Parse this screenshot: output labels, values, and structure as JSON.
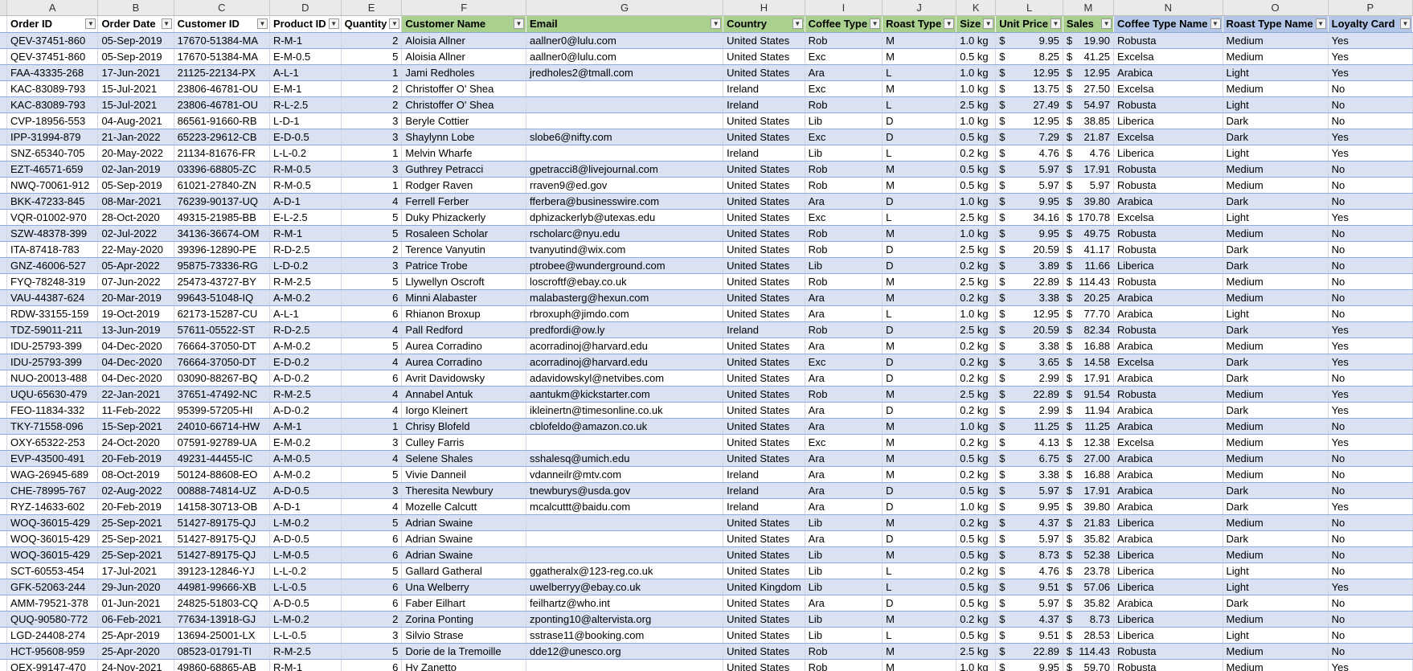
{
  "column_letters": [
    "A",
    "B",
    "C",
    "D",
    "E",
    "F",
    "G",
    "H",
    "I",
    "J",
    "K",
    "L",
    "M",
    "N",
    "O",
    "P"
  ],
  "headers": [
    "Order ID",
    "Order Date",
    "Customer ID",
    "Product ID",
    "Quantity",
    "Customer Name",
    "Email",
    "Country",
    "Coffee Type",
    "Roast Type",
    "Size",
    "Unit Price",
    "Sales",
    "Coffee Type Name",
    "Roast Type Name",
    "Loyalty Card"
  ],
  "currency_symbol": "$",
  "colors": {
    "header_green": "#a9d08e",
    "header_blue": "#b4c6e7",
    "band": "#d9e1f2",
    "border": "#8ea9db"
  },
  "filter_icon": "filter-dropdown-icon",
  "rows": [
    [
      "QEV-37451-860",
      "05-Sep-2019",
      "17670-51384-MA",
      "R-M-1",
      "2",
      "Aloisia Allner",
      "aallner0@lulu.com",
      "United States",
      "Rob",
      "M",
      "1.0 kg",
      "9.95",
      "19.90",
      "Robusta",
      "Medium",
      "Yes"
    ],
    [
      "QEV-37451-860",
      "05-Sep-2019",
      "17670-51384-MA",
      "E-M-0.5",
      "5",
      "Aloisia Allner",
      "aallner0@lulu.com",
      "United States",
      "Exc",
      "M",
      "0.5 kg",
      "8.25",
      "41.25",
      "Excelsa",
      "Medium",
      "Yes"
    ],
    [
      "FAA-43335-268",
      "17-Jun-2021",
      "21125-22134-PX",
      "A-L-1",
      "1",
      "Jami Redholes",
      "jredholes2@tmall.com",
      "United States",
      "Ara",
      "L",
      "1.0 kg",
      "12.95",
      "12.95",
      "Arabica",
      "Light",
      "Yes"
    ],
    [
      "KAC-83089-793",
      "15-Jul-2021",
      "23806-46781-OU",
      "E-M-1",
      "2",
      "Christoffer O' Shea",
      "",
      "Ireland",
      "Exc",
      "M",
      "1.0 kg",
      "13.75",
      "27.50",
      "Excelsa",
      "Medium",
      "No"
    ],
    [
      "KAC-83089-793",
      "15-Jul-2021",
      "23806-46781-OU",
      "R-L-2.5",
      "2",
      "Christoffer O' Shea",
      "",
      "Ireland",
      "Rob",
      "L",
      "2.5 kg",
      "27.49",
      "54.97",
      "Robusta",
      "Light",
      "No"
    ],
    [
      "CVP-18956-553",
      "04-Aug-2021",
      "86561-91660-RB",
      "L-D-1",
      "3",
      "Beryle Cottier",
      "",
      "United States",
      "Lib",
      "D",
      "1.0 kg",
      "12.95",
      "38.85",
      "Liberica",
      "Dark",
      "No"
    ],
    [
      "IPP-31994-879",
      "21-Jan-2022",
      "65223-29612-CB",
      "E-D-0.5",
      "3",
      "Shaylynn Lobe",
      "slobe6@nifty.com",
      "United States",
      "Exc",
      "D",
      "0.5 kg",
      "7.29",
      "21.87",
      "Excelsa",
      "Dark",
      "Yes"
    ],
    [
      "SNZ-65340-705",
      "20-May-2022",
      "21134-81676-FR",
      "L-L-0.2",
      "1",
      "Melvin Wharfe",
      "",
      "Ireland",
      "Lib",
      "L",
      "0.2 kg",
      "4.76",
      "4.76",
      "Liberica",
      "Light",
      "Yes"
    ],
    [
      "EZT-46571-659",
      "02-Jan-2019",
      "03396-68805-ZC",
      "R-M-0.5",
      "3",
      "Guthrey Petracci",
      "gpetracci8@livejournal.com",
      "United States",
      "Rob",
      "M",
      "0.5 kg",
      "5.97",
      "17.91",
      "Robusta",
      "Medium",
      "No"
    ],
    [
      "NWQ-70061-912",
      "05-Sep-2019",
      "61021-27840-ZN",
      "R-M-0.5",
      "1",
      "Rodger Raven",
      "rraven9@ed.gov",
      "United States",
      "Rob",
      "M",
      "0.5 kg",
      "5.97",
      "5.97",
      "Robusta",
      "Medium",
      "No"
    ],
    [
      "BKK-47233-845",
      "08-Mar-2021",
      "76239-90137-UQ",
      "A-D-1",
      "4",
      "Ferrell Ferber",
      "fferbera@businesswire.com",
      "United States",
      "Ara",
      "D",
      "1.0 kg",
      "9.95",
      "39.80",
      "Arabica",
      "Dark",
      "No"
    ],
    [
      "VQR-01002-970",
      "28-Oct-2020",
      "49315-21985-BB",
      "E-L-2.5",
      "5",
      "Duky Phizackerly",
      "dphizackerlyb@utexas.edu",
      "United States",
      "Exc",
      "L",
      "2.5 kg",
      "34.16",
      "170.78",
      "Excelsa",
      "Light",
      "Yes"
    ],
    [
      "SZW-48378-399",
      "02-Jul-2022",
      "34136-36674-OM",
      "R-M-1",
      "5",
      "Rosaleen Scholar",
      "rscholarc@nyu.edu",
      "United States",
      "Rob",
      "M",
      "1.0 kg",
      "9.95",
      "49.75",
      "Robusta",
      "Medium",
      "No"
    ],
    [
      "ITA-87418-783",
      "22-May-2020",
      "39396-12890-PE",
      "R-D-2.5",
      "2",
      "Terence Vanyutin",
      "tvanyutind@wix.com",
      "United States",
      "Rob",
      "D",
      "2.5 kg",
      "20.59",
      "41.17",
      "Robusta",
      "Dark",
      "No"
    ],
    [
      "GNZ-46006-527",
      "05-Apr-2022",
      "95875-73336-RG",
      "L-D-0.2",
      "3",
      "Patrice Trobe",
      "ptrobee@wunderground.com",
      "United States",
      "Lib",
      "D",
      "0.2 kg",
      "3.89",
      "11.66",
      "Liberica",
      "Dark",
      "No"
    ],
    [
      "FYQ-78248-319",
      "07-Jun-2022",
      "25473-43727-BY",
      "R-M-2.5",
      "5",
      "Llywellyn Oscroft",
      "loscroftf@ebay.co.uk",
      "United States",
      "Rob",
      "M",
      "2.5 kg",
      "22.89",
      "114.43",
      "Robusta",
      "Medium",
      "No"
    ],
    [
      "VAU-44387-624",
      "20-Mar-2019",
      "99643-51048-IQ",
      "A-M-0.2",
      "6",
      "Minni Alabaster",
      "malabasterg@hexun.com",
      "United States",
      "Ara",
      "M",
      "0.2 kg",
      "3.38",
      "20.25",
      "Arabica",
      "Medium",
      "No"
    ],
    [
      "RDW-33155-159",
      "19-Oct-2019",
      "62173-15287-CU",
      "A-L-1",
      "6",
      "Rhianon Broxup",
      "rbroxuph@jimdo.com",
      "United States",
      "Ara",
      "L",
      "1.0 kg",
      "12.95",
      "77.70",
      "Arabica",
      "Light",
      "No"
    ],
    [
      "TDZ-59011-211",
      "13-Jun-2019",
      "57611-05522-ST",
      "R-D-2.5",
      "4",
      "Pall Redford",
      "predfordi@ow.ly",
      "Ireland",
      "Rob",
      "D",
      "2.5 kg",
      "20.59",
      "82.34",
      "Robusta",
      "Dark",
      "Yes"
    ],
    [
      "IDU-25793-399",
      "04-Dec-2020",
      "76664-37050-DT",
      "A-M-0.2",
      "5",
      "Aurea Corradino",
      "acorradinoj@harvard.edu",
      "United States",
      "Ara",
      "M",
      "0.2 kg",
      "3.38",
      "16.88",
      "Arabica",
      "Medium",
      "Yes"
    ],
    [
      "IDU-25793-399",
      "04-Dec-2020",
      "76664-37050-DT",
      "E-D-0.2",
      "4",
      "Aurea Corradino",
      "acorradinoj@harvard.edu",
      "United States",
      "Exc",
      "D",
      "0.2 kg",
      "3.65",
      "14.58",
      "Excelsa",
      "Dark",
      "Yes"
    ],
    [
      "NUO-20013-488",
      "04-Dec-2020",
      "03090-88267-BQ",
      "A-D-0.2",
      "6",
      "Avrit Davidowsky",
      "adavidowskyl@netvibes.com",
      "United States",
      "Ara",
      "D",
      "0.2 kg",
      "2.99",
      "17.91",
      "Arabica",
      "Dark",
      "No"
    ],
    [
      "UQU-65630-479",
      "22-Jan-2021",
      "37651-47492-NC",
      "R-M-2.5",
      "4",
      "Annabel Antuk",
      "aantukm@kickstarter.com",
      "United States",
      "Rob",
      "M",
      "2.5 kg",
      "22.89",
      "91.54",
      "Robusta",
      "Medium",
      "Yes"
    ],
    [
      "FEO-11834-332",
      "11-Feb-2022",
      "95399-57205-HI",
      "A-D-0.2",
      "4",
      "Iorgo Kleinert",
      "ikleinertn@timesonline.co.uk",
      "United States",
      "Ara",
      "D",
      "0.2 kg",
      "2.99",
      "11.94",
      "Arabica",
      "Dark",
      "Yes"
    ],
    [
      "TKY-71558-096",
      "15-Sep-2021",
      "24010-66714-HW",
      "A-M-1",
      "1",
      "Chrisy Blofeld",
      "cblofeldo@amazon.co.uk",
      "United States",
      "Ara",
      "M",
      "1.0 kg",
      "11.25",
      "11.25",
      "Arabica",
      "Medium",
      "No"
    ],
    [
      "OXY-65322-253",
      "24-Oct-2020",
      "07591-92789-UA",
      "E-M-0.2",
      "3",
      "Culley Farris",
      "",
      "United States",
      "Exc",
      "M",
      "0.2 kg",
      "4.13",
      "12.38",
      "Excelsa",
      "Medium",
      "Yes"
    ],
    [
      "EVP-43500-491",
      "20-Feb-2019",
      "49231-44455-IC",
      "A-M-0.5",
      "4",
      "Selene Shales",
      "sshalesq@umich.edu",
      "United States",
      "Ara",
      "M",
      "0.5 kg",
      "6.75",
      "27.00",
      "Arabica",
      "Medium",
      "No"
    ],
    [
      "WAG-26945-689",
      "08-Oct-2019",
      "50124-88608-EO",
      "A-M-0.2",
      "5",
      "Vivie Danneil",
      "vdanneilr@mtv.com",
      "Ireland",
      "Ara",
      "M",
      "0.2 kg",
      "3.38",
      "16.88",
      "Arabica",
      "Medium",
      "No"
    ],
    [
      "CHE-78995-767",
      "02-Aug-2022",
      "00888-74814-UZ",
      "A-D-0.5",
      "3",
      "Theresita Newbury",
      "tnewburys@usda.gov",
      "Ireland",
      "Ara",
      "D",
      "0.5 kg",
      "5.97",
      "17.91",
      "Arabica",
      "Dark",
      "No"
    ],
    [
      "RYZ-14633-602",
      "20-Feb-2019",
      "14158-30713-OB",
      "A-D-1",
      "4",
      "Mozelle Calcutt",
      "mcalcuttt@baidu.com",
      "Ireland",
      "Ara",
      "D",
      "1.0 kg",
      "9.95",
      "39.80",
      "Arabica",
      "Dark",
      "Yes"
    ],
    [
      "WOQ-36015-429",
      "25-Sep-2021",
      "51427-89175-QJ",
      "L-M-0.2",
      "5",
      "Adrian Swaine",
      "",
      "United States",
      "Lib",
      "M",
      "0.2 kg",
      "4.37",
      "21.83",
      "Liberica",
      "Medium",
      "No"
    ],
    [
      "WOQ-36015-429",
      "25-Sep-2021",
      "51427-89175-QJ",
      "A-D-0.5",
      "6",
      "Adrian Swaine",
      "",
      "United States",
      "Ara",
      "D",
      "0.5 kg",
      "5.97",
      "35.82",
      "Arabica",
      "Dark",
      "No"
    ],
    [
      "WOQ-36015-429",
      "25-Sep-2021",
      "51427-89175-QJ",
      "L-M-0.5",
      "6",
      "Adrian Swaine",
      "",
      "United States",
      "Lib",
      "M",
      "0.5 kg",
      "8.73",
      "52.38",
      "Liberica",
      "Medium",
      "No"
    ],
    [
      "SCT-60553-454",
      "17-Jul-2021",
      "39123-12846-YJ",
      "L-L-0.2",
      "5",
      "Gallard Gatheral",
      "ggatheralx@123-reg.co.uk",
      "United States",
      "Lib",
      "L",
      "0.2 kg",
      "4.76",
      "23.78",
      "Liberica",
      "Light",
      "No"
    ],
    [
      "GFK-52063-244",
      "29-Jun-2020",
      "44981-99666-XB",
      "L-L-0.5",
      "6",
      "Una Welberry",
      "uwelberryy@ebay.co.uk",
      "United Kingdom",
      "Lib",
      "L",
      "0.5 kg",
      "9.51",
      "57.06",
      "Liberica",
      "Light",
      "Yes"
    ],
    [
      "AMM-79521-378",
      "01-Jun-2021",
      "24825-51803-CQ",
      "A-D-0.5",
      "6",
      "Faber Eilhart",
      "feilhartz@who.int",
      "United States",
      "Ara",
      "D",
      "0.5 kg",
      "5.97",
      "35.82",
      "Arabica",
      "Dark",
      "No"
    ],
    [
      "QUQ-90580-772",
      "06-Feb-2021",
      "77634-13918-GJ",
      "L-M-0.2",
      "2",
      "Zorina Ponting",
      "zponting10@altervista.org",
      "United States",
      "Lib",
      "M",
      "0.2 kg",
      "4.37",
      "8.73",
      "Liberica",
      "Medium",
      "No"
    ],
    [
      "LGD-24408-274",
      "25-Apr-2019",
      "13694-25001-LX",
      "L-L-0.5",
      "3",
      "Silvio Strase",
      "sstrase11@booking.com",
      "United States",
      "Lib",
      "L",
      "0.5 kg",
      "9.51",
      "28.53",
      "Liberica",
      "Light",
      "No"
    ],
    [
      "HCT-95608-959",
      "25-Apr-2020",
      "08523-01791-TI",
      "R-M-2.5",
      "5",
      "Dorie de la Tremoille",
      "dde12@unesco.org",
      "United States",
      "Rob",
      "M",
      "2.5 kg",
      "22.89",
      "114.43",
      "Robusta",
      "Medium",
      "No"
    ],
    [
      "QEX-99147-470",
      "24-Nov-2021",
      "49860-68865-AB",
      "R-M-1",
      "6",
      "Hy Zanetto",
      "",
      "United States",
      "Rob",
      "M",
      "1.0 kg",
      "9.95",
      "59.70",
      "Robusta",
      "Medium",
      "Yes"
    ]
  ]
}
